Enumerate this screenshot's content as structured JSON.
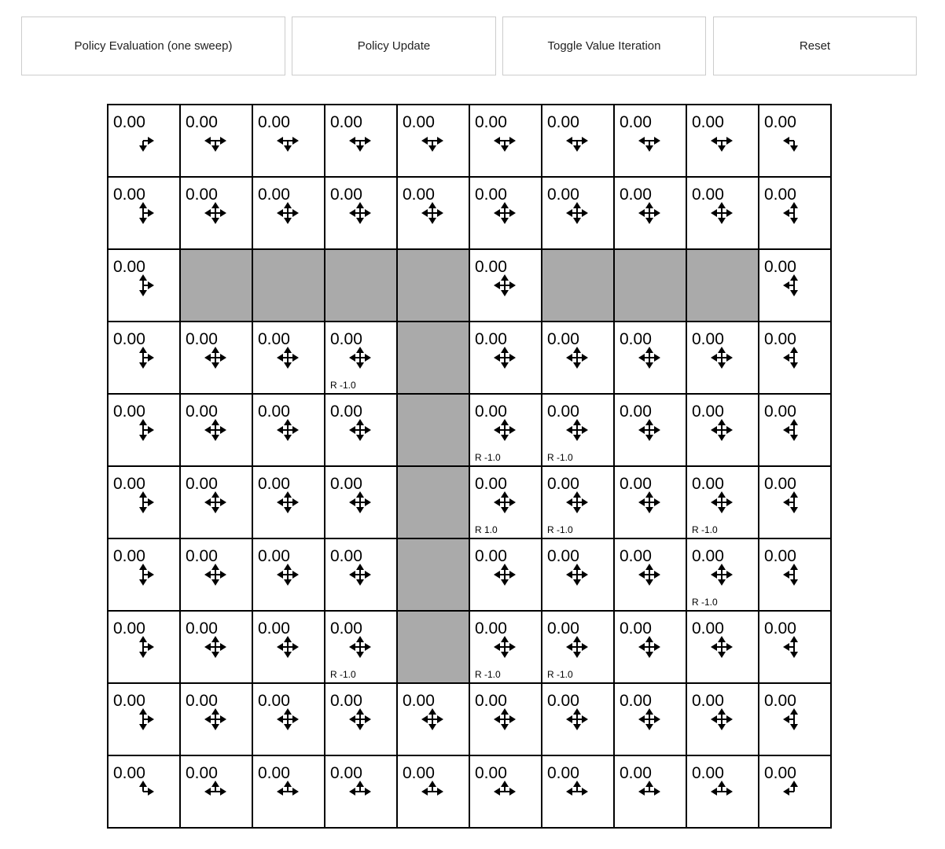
{
  "toolbar": {
    "policy_eval_label": "Policy Evaluation (one sweep)",
    "policy_update_label": "Policy Update",
    "toggle_vi_label": "Toggle Value Iteration",
    "reset_label": "Reset"
  },
  "colors": {
    "wall": "#aaaaaa",
    "cell": "#ffffff",
    "border": "#000000"
  },
  "grid": {
    "rows": 10,
    "cols": 10,
    "walls": [
      [
        2,
        1
      ],
      [
        2,
        2
      ],
      [
        2,
        3
      ],
      [
        2,
        4
      ],
      [
        2,
        6
      ],
      [
        2,
        7
      ],
      [
        2,
        8
      ],
      [
        3,
        4
      ],
      [
        4,
        4
      ],
      [
        5,
        4
      ],
      [
        6,
        4
      ],
      [
        7,
        4
      ]
    ],
    "rewards": [
      {
        "row": 3,
        "col": 3,
        "label": "R -1.0"
      },
      {
        "row": 4,
        "col": 5,
        "label": "R -1.0"
      },
      {
        "row": 4,
        "col": 6,
        "label": "R -1.0"
      },
      {
        "row": 5,
        "col": 5,
        "label": "R 1.0"
      },
      {
        "row": 5,
        "col": 6,
        "label": "R -1.0"
      },
      {
        "row": 5,
        "col": 8,
        "label": "R -1.0"
      },
      {
        "row": 6,
        "col": 8,
        "label": "R -1.0"
      },
      {
        "row": 7,
        "col": 3,
        "label": "R -1.0"
      },
      {
        "row": 7,
        "col": 5,
        "label": "R -1.0"
      },
      {
        "row": 7,
        "col": 6,
        "label": "R -1.0"
      }
    ],
    "value_text": "0.00"
  }
}
